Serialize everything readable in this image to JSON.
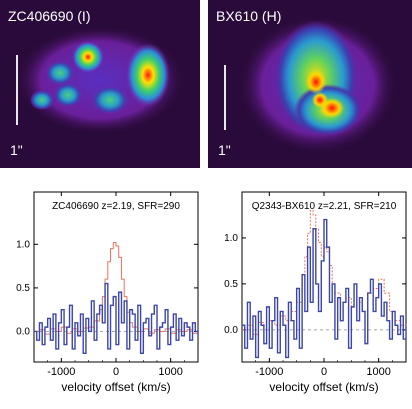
{
  "images": [
    {
      "label": "ZC406690 (I)",
      "scale_label": "1\""
    },
    {
      "label": "BX610 (H)",
      "scale_label": "1\""
    }
  ],
  "colors": {
    "model_line": "#e8735a",
    "data_line": "#3c45a8",
    "image_background": "#2a0a3a"
  },
  "chart_data": [
    {
      "type": "line",
      "title": "ZC406690 z=2.19, SFR=290",
      "xlabel": "velocity offset (km/s)",
      "ylabel": "",
      "xlim": [
        -1500,
        1500
      ],
      "ylim": [
        -0.35,
        1.6
      ],
      "x_ticks": [
        -1000,
        0,
        1000
      ],
      "y_ticks": [
        0.0,
        0.5,
        1.0
      ],
      "y_tick_labels": [
        "0.0",
        "0.5",
        "1.0"
      ],
      "series": [
        {
          "style": "step",
          "color": "#e8735a",
          "x": [
            -1500,
            -1400,
            -1300,
            -1200,
            -1100,
            -1000,
            -900,
            -800,
            -700,
            -600,
            -500,
            -400,
            -300,
            -250,
            -200,
            -150,
            -100,
            -50,
            0,
            50,
            100,
            150,
            200,
            250,
            300,
            400,
            500,
            600,
            700,
            800,
            900,
            1000,
            1100,
            1200,
            1300,
            1400,
            1500
          ],
          "values": [
            0.0,
            0.02,
            -0.03,
            0.03,
            0.0,
            0.05,
            -0.02,
            0.03,
            0.0,
            0.04,
            0.05,
            0.12,
            0.25,
            0.4,
            0.6,
            0.8,
            0.95,
            1.02,
            0.98,
            0.85,
            0.6,
            0.4,
            0.22,
            0.1,
            0.05,
            0.0,
            0.03,
            -0.02,
            0.02,
            0.0,
            0.03,
            -0.02,
            0.02,
            0.0,
            0.02,
            -0.02,
            0.0
          ]
        },
        {
          "style": "step",
          "color": "#3c45a8",
          "x": [
            -1500,
            -1450,
            -1400,
            -1350,
            -1300,
            -1250,
            -1200,
            -1150,
            -1100,
            -1050,
            -1000,
            -950,
            -900,
            -850,
            -800,
            -750,
            -700,
            -650,
            -600,
            -550,
            -500,
            -450,
            -400,
            -350,
            -300,
            -250,
            -200,
            -150,
            -100,
            -50,
            0,
            50,
            100,
            150,
            200,
            250,
            300,
            350,
            400,
            450,
            500,
            550,
            600,
            650,
            700,
            750,
            800,
            850,
            900,
            950,
            1000,
            1050,
            1100,
            1150,
            1200,
            1250,
            1300,
            1350,
            1400,
            1450,
            1500
          ],
          "values": [
            0.0,
            -0.1,
            0.1,
            -0.15,
            0.05,
            0.15,
            -0.1,
            0.2,
            -0.2,
            0.1,
            0.25,
            -0.15,
            0.05,
            0.3,
            -0.2,
            0.1,
            -0.05,
            0.2,
            -0.25,
            0.15,
            0.0,
            0.35,
            -0.1,
            0.2,
            0.3,
            0.1,
            0.55,
            -0.2,
            0.3,
            0.4,
            -0.15,
            0.45,
            0.1,
            0.35,
            -0.2,
            0.25,
            0.2,
            -0.1,
            0.3,
            -0.25,
            0.1,
            0.15,
            -0.05,
            0.2,
            0.3,
            -0.2,
            0.05,
            0.1,
            0.25,
            -0.15,
            0.05,
            0.2,
            -0.1,
            0.15,
            -0.05,
            0.1,
            0.05,
            -0.1,
            0.1,
            0.0,
            -0.05
          ]
        }
      ]
    },
    {
      "type": "line",
      "title": "Q2343-BX610 z=2.21, SFR=210",
      "xlabel": "velocity offset (km/s)",
      "ylabel": "",
      "xlim": [
        -1500,
        1500
      ],
      "ylim": [
        -0.35,
        1.5
      ],
      "x_ticks": [
        -1000,
        0,
        1000
      ],
      "y_ticks": [
        0.0,
        0.5,
        1.0
      ],
      "y_tick_labels": [
        "0.0",
        "0.5",
        "1.0"
      ],
      "series": [
        {
          "style": "step",
          "color": "#e8735a",
          "x": [
            -1500,
            -1400,
            -1300,
            -1200,
            -1100,
            -1000,
            -900,
            -800,
            -700,
            -600,
            -500,
            -400,
            -350,
            -300,
            -250,
            -200,
            -150,
            -100,
            -50,
            0,
            50,
            100,
            150,
            200,
            300,
            400,
            500,
            600,
            700,
            800,
            900,
            1000,
            1100,
            1200,
            1300,
            1400,
            1500
          ],
          "values": [
            0.0,
            0.05,
            -0.05,
            0.08,
            0.0,
            0.1,
            0.05,
            0.15,
            0.1,
            0.2,
            0.3,
            0.55,
            0.8,
            1.05,
            1.3,
            1.25,
            1.1,
            0.95,
            0.8,
            0.9,
            0.85,
            0.7,
            0.5,
            0.4,
            0.3,
            0.35,
            0.25,
            0.3,
            0.2,
            0.4,
            0.45,
            0.55,
            0.4,
            0.2,
            0.1,
            0.05,
            0.0
          ]
        },
        {
          "style": "step",
          "color": "#3c45a8",
          "x": [
            -1500,
            -1450,
            -1400,
            -1350,
            -1300,
            -1250,
            -1200,
            -1150,
            -1100,
            -1050,
            -1000,
            -950,
            -900,
            -850,
            -800,
            -750,
            -700,
            -650,
            -600,
            -550,
            -500,
            -450,
            -400,
            -350,
            -300,
            -250,
            -200,
            -150,
            -100,
            -50,
            0,
            50,
            100,
            150,
            200,
            250,
            300,
            350,
            400,
            450,
            500,
            550,
            600,
            650,
            700,
            750,
            800,
            850,
            900,
            950,
            1000,
            1050,
            1100,
            1150,
            1200,
            1250,
            1300,
            1350,
            1400,
            1450,
            1500
          ],
          "values": [
            0.05,
            -0.2,
            0.3,
            -0.1,
            0.15,
            -0.3,
            0.2,
            0.05,
            -0.15,
            0.25,
            -0.2,
            0.1,
            0.35,
            -0.25,
            0.2,
            0.05,
            -0.3,
            0.3,
            0.1,
            -0.1,
            0.45,
            -0.2,
            0.6,
            0.2,
            0.9,
            0.3,
            1.1,
            0.5,
            0.2,
            0.75,
            1.2,
            0.9,
            0.3,
            0.5,
            -0.1,
            0.35,
            0.1,
            0.3,
            0.45,
            -0.2,
            0.25,
            0.5,
            0.1,
            0.35,
            0.2,
            -0.15,
            0.4,
            0.55,
            0.2,
            0.35,
            0.5,
            0.15,
            0.3,
            0.1,
            -0.1,
            0.2,
            0.05,
            -0.05,
            0.15,
            -0.1,
            0.05
          ]
        }
      ]
    }
  ]
}
